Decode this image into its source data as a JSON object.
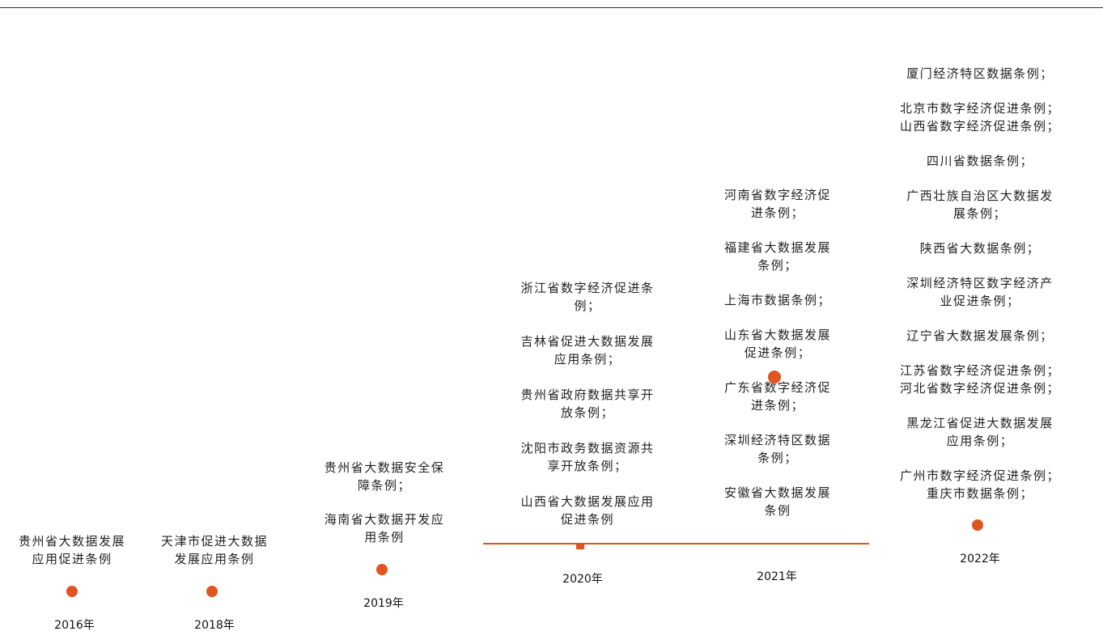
{
  "accent_color": "#e0541f",
  "timeline": [
    {
      "year": "2016年",
      "items": [
        "贵州省大数据发展\n应用促进条例"
      ]
    },
    {
      "year": "2018年",
      "items": [
        "天津市促进大数据\n发展应用条例"
      ]
    },
    {
      "year": "2019年",
      "items": [
        "贵州省大数据安全保\n障条例；",
        "海南省大数据开发应\n用条例"
      ]
    },
    {
      "year": "2020年",
      "items": [
        "浙江省数字经济促进条\n例；",
        "吉林省促进大数据发展\n应用条例；",
        "贵州省政府数据共享开\n放条例；",
        "沈阳市政务数据资源共\n享开放条例；",
        "山西省大数据发展应用\n促进条例"
      ]
    },
    {
      "year": "2021年",
      "items": [
        "河南省数字经济促\n进条例；",
        "福建省大数据发展\n条例；",
        "上海市数据条例；",
        "山东省大数据发展\n促进条例；",
        "广东省数字经济促\n进条例；",
        "深圳经济特区数据\n条例；",
        "安徽省大数据发展\n条例"
      ]
    },
    {
      "year": "2022年",
      "items": [
        "厦门经济特区数据条例；",
        "北京市数字经济促进条例；\n山西省数字经济促进条例；",
        "四川省数据条例；",
        "广西壮族自治区大数据发\n展条例；",
        "陕西省大数据条例；",
        "深圳经济特区数字经济产\n业促进条例；",
        "辽宁省大数据发展条例；",
        "江苏省数字经济促进条例；\n河北省数字经济促进条例；",
        "黑龙江省促进大数据发展\n应用条例；",
        "广州市数字经济促进条例；\n重庆市数据条例；"
      ]
    }
  ]
}
